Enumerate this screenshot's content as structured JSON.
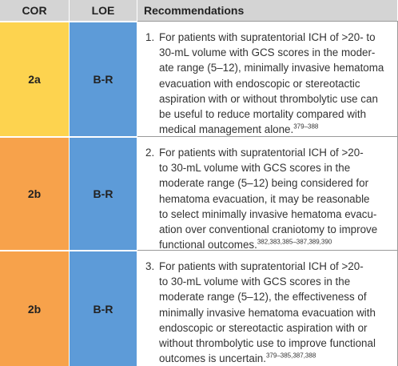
{
  "header": {
    "cor": "COR",
    "loe": "LOE",
    "recommendations": "Recommendations"
  },
  "rows": [
    {
      "cor": "2a",
      "cor_color": "#fdd34f",
      "loe": "B-R",
      "loe_color": "#5d9bd8",
      "number": "1.",
      "lines": [
        "For patients with supratentorial ICH of >20- to",
        "30-mL volume with GCS scores in the moder-",
        "ate range (5–12), minimally invasive hematoma",
        "evacuation with endoscopic or stereotactic",
        "aspiration with or without thrombolytic use can",
        "be useful to reduce mortality compared with",
        "medical management alone."
      ],
      "ref": "379–388"
    },
    {
      "cor": "2b",
      "cor_color": "#f7a24b",
      "loe": "B-R",
      "loe_color": "#5d9bd8",
      "number": "2.",
      "lines": [
        "For patients with supratentorial ICH of >20-",
        "to 30-mL volume with GCS scores in the",
        "moderate range (5–12) being considered for",
        "hematoma evacuation, it may be reasonable",
        "to select minimally invasive hematoma evacu-",
        "ation over conventional craniotomy to improve",
        "functional outcomes."
      ],
      "ref": "382,383,385–387,389,390"
    },
    {
      "cor": "2b",
      "cor_color": "#f7a24b",
      "loe": "B-R",
      "loe_color": "#5d9bd8",
      "number": "3.",
      "lines": [
        "For patients with supratentorial ICH of >20-",
        "to 30-mL volume with GCS scores in the",
        "moderate range (5–12), the effectiveness of",
        "minimally invasive hematoma evacuation with",
        "endoscopic or stereotactic aspiration with or",
        "without thrombolytic use to improve functional",
        "outcomes is uncertain."
      ],
      "ref": "379–385,387,388"
    }
  ]
}
